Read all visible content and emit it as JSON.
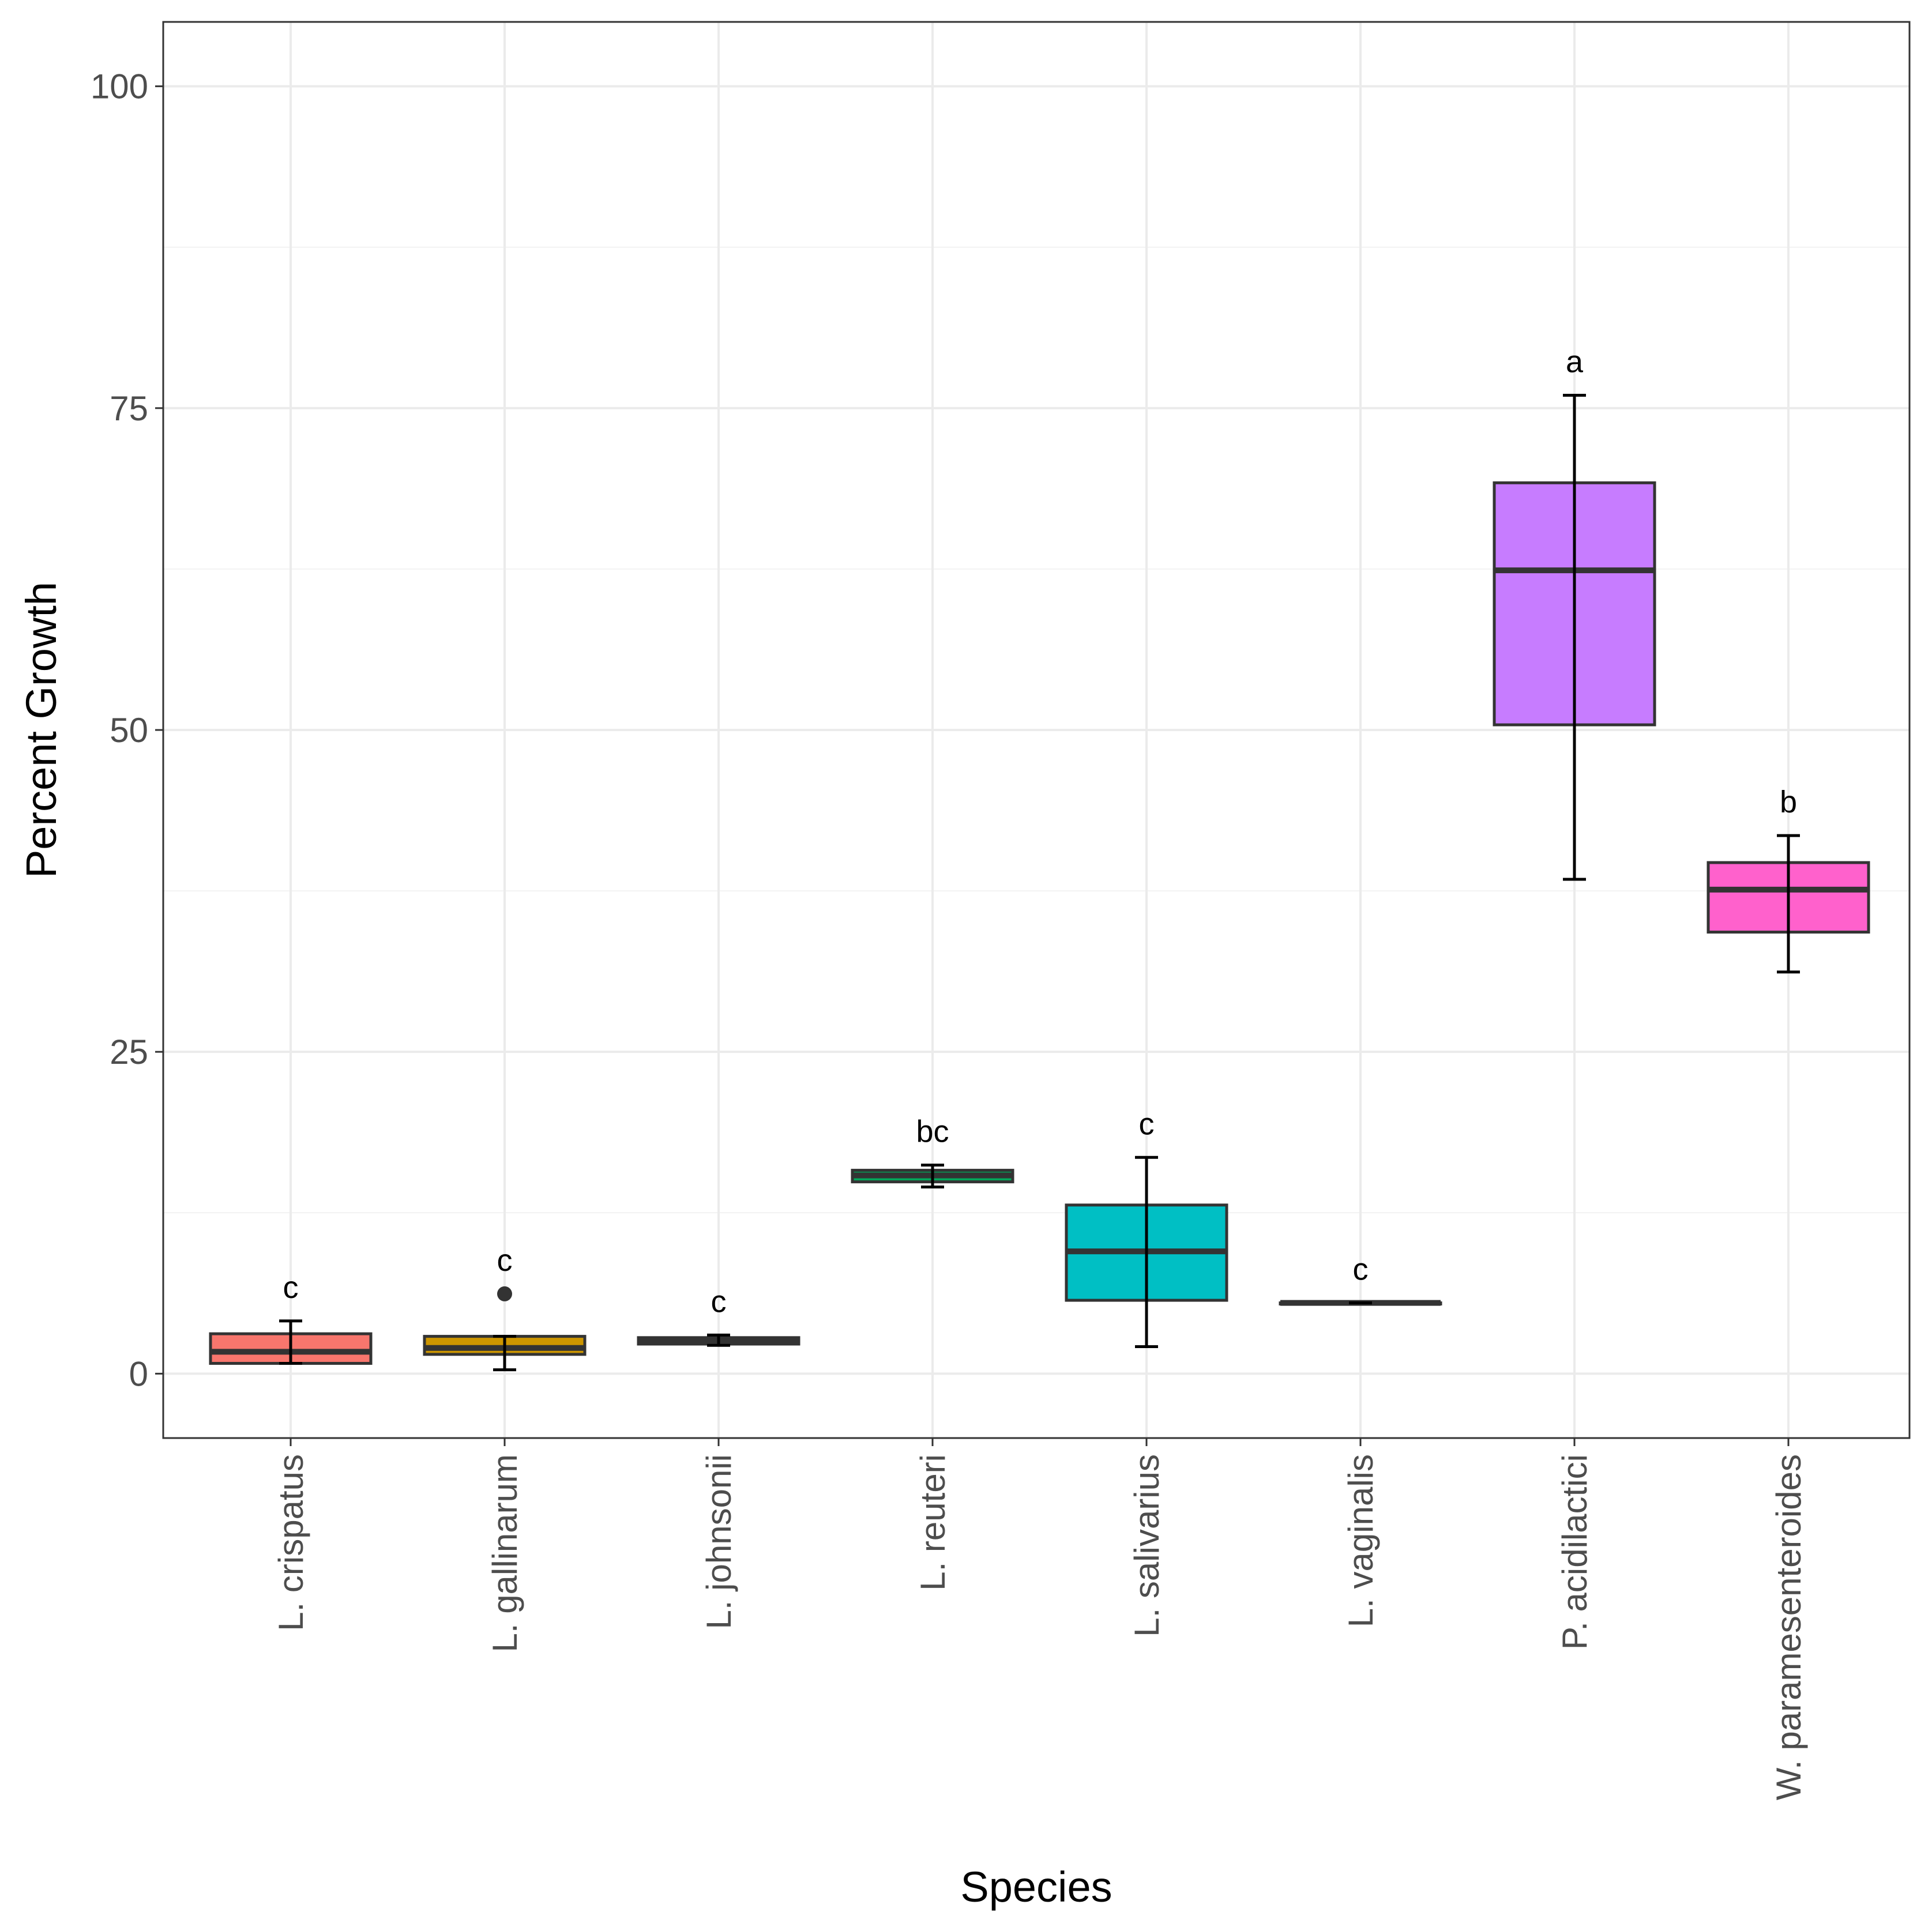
{
  "chart_data": {
    "type": "boxplot",
    "title": "",
    "xlabel": "Species",
    "ylabel": "Percent Growth",
    "ylim": [
      -5,
      105
    ],
    "yticks": [
      0,
      25,
      50,
      75,
      100
    ],
    "ytick_labels": [
      "0",
      "25",
      "50",
      "75",
      "100"
    ],
    "grid": true,
    "legend": "none",
    "series": [
      {
        "name": "L. crispatus",
        "whisker_low": 0.8,
        "q1": 0.8,
        "median": 1.7,
        "q3": 3.1,
        "whisker_high": 4.1,
        "outliers": [],
        "letter": "c",
        "color": "#F8766D"
      },
      {
        "name": "L. gallinarum",
        "whisker_low": 0.3,
        "q1": 1.5,
        "median": 2.0,
        "q3": 2.9,
        "whisker_high": 2.9,
        "outliers": [
          6.2
        ],
        "letter": "c",
        "color": "#CD9600"
      },
      {
        "name": "L. johnsonii",
        "whisker_low": 2.2,
        "q1": 2.3,
        "median": 2.6,
        "q3": 2.8,
        "whisker_high": 3.0,
        "outliers": [],
        "letter": "c",
        "color": "#7CAE00"
      },
      {
        "name": "L. reuteri",
        "whisker_low": 14.5,
        "q1": 14.9,
        "median": 15.4,
        "q3": 15.8,
        "whisker_high": 16.2,
        "outliers": [],
        "letter": "bc",
        "color": "#00A65A"
      },
      {
        "name": "L. salivarius",
        "whisker_low": 2.1,
        "q1": 5.7,
        "median": 9.5,
        "q3": 13.1,
        "whisker_high": 16.8,
        "outliers": [],
        "letter": "c",
        "color": "#00BFC4"
      },
      {
        "name": "L. vaginalis",
        "whisker_low": 5.5,
        "q1": 5.5,
        "median": 5.5,
        "q3": 5.5,
        "whisker_high": 5.5,
        "outliers": [],
        "letter": "c",
        "color": "#00A9FF"
      },
      {
        "name": "P. acidilactici",
        "whisker_low": 38.4,
        "q1": 50.4,
        "median": 62.4,
        "q3": 69.2,
        "whisker_high": 76.0,
        "outliers": [],
        "letter": "a",
        "color": "#C77CFF"
      },
      {
        "name": "W. paramesenteroides",
        "whisker_low": 31.2,
        "q1": 34.3,
        "median": 37.6,
        "q3": 39.7,
        "whisker_high": 41.8,
        "outliers": [],
        "letter": "b",
        "color": "#FF61CC"
      }
    ]
  }
}
